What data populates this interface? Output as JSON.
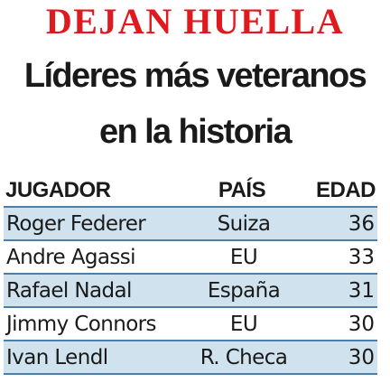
{
  "kicker": "DEJAN HUELLA",
  "title_line1": "Líderes más veteranos",
  "title_line2": "en la historia",
  "table": {
    "headers": [
      "JUGADOR",
      "PAÍS",
      "EDAD"
    ],
    "rows": [
      [
        "Roger Federer",
        "Suiza",
        "36"
      ],
      [
        "Andre Agassi",
        "EU",
        "33"
      ],
      [
        "Rafael Nadal",
        "España",
        "31"
      ],
      [
        "Jimmy Connors",
        "EU",
        "30"
      ],
      [
        "Ivan Lendl",
        "R. Checa",
        "30"
      ]
    ]
  },
  "colors": {
    "kicker": "#e0191f",
    "row_shade": "#cfe2ee",
    "rule": "#4b7fa9"
  }
}
